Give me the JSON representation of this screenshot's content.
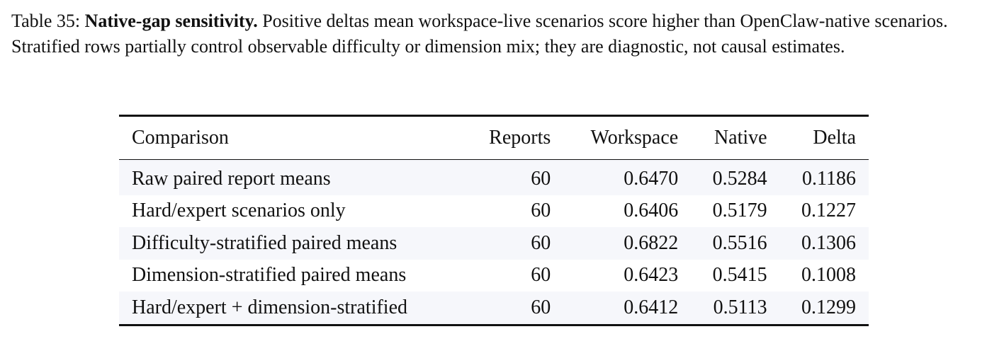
{
  "caption": {
    "label": "Table 35:",
    "title": "Native-gap sensitivity.",
    "text": "Positive deltas mean workspace-live scenarios score higher than OpenClaw-native scenarios. Stratified rows partially control observable difficulty or dimension mix; they are diagnostic, not causal estimates."
  },
  "table": {
    "headers": {
      "comparison": "Comparison",
      "reports": "Reports",
      "workspace": "Workspace",
      "native": "Native",
      "delta": "Delta"
    },
    "rows": [
      {
        "comparison": "Raw paired report means",
        "reports": "60",
        "workspace": "0.6470",
        "native": "0.5284",
        "delta": "0.1186"
      },
      {
        "comparison": "Hard/expert scenarios only",
        "reports": "60",
        "workspace": "0.6406",
        "native": "0.5179",
        "delta": "0.1227"
      },
      {
        "comparison": "Difficulty-stratified paired means",
        "reports": "60",
        "workspace": "0.6822",
        "native": "0.5516",
        "delta": "0.1306"
      },
      {
        "comparison": "Dimension-stratified paired means",
        "reports": "60",
        "workspace": "0.6423",
        "native": "0.5415",
        "delta": "0.1008"
      },
      {
        "comparison": "Hard/expert + dimension-stratified",
        "reports": "60",
        "workspace": "0.6412",
        "native": "0.5113",
        "delta": "0.1299"
      }
    ]
  }
}
